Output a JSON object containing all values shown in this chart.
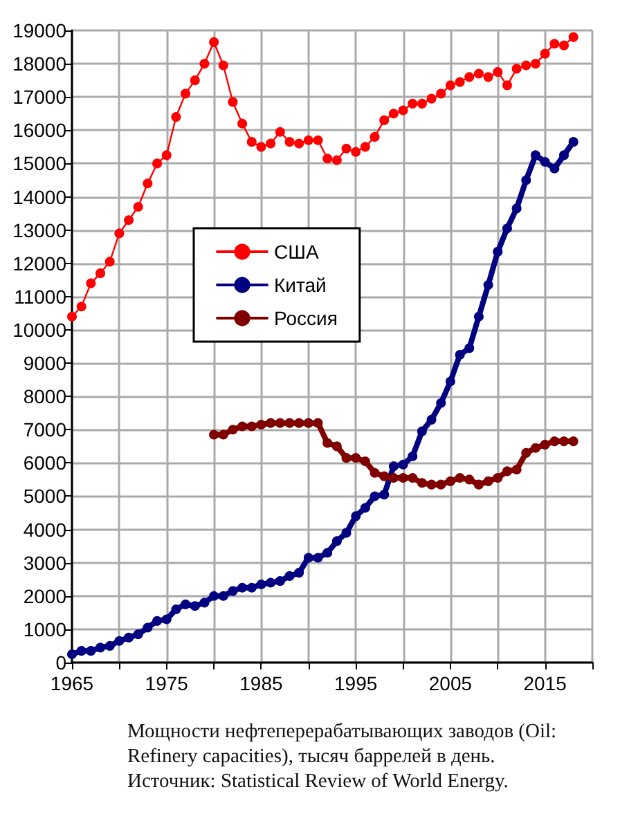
{
  "chart_data": {
    "type": "line",
    "x": [
      1965,
      1966,
      1967,
      1968,
      1969,
      1970,
      1971,
      1972,
      1973,
      1974,
      1975,
      1976,
      1977,
      1978,
      1979,
      1980,
      1981,
      1982,
      1983,
      1984,
      1985,
      1986,
      1987,
      1988,
      1989,
      1990,
      1991,
      1992,
      1993,
      1994,
      1995,
      1996,
      1997,
      1998,
      1999,
      2000,
      2001,
      2002,
      2003,
      2004,
      2005,
      2006,
      2007,
      2008,
      2009,
      2010,
      2011,
      2012,
      2013,
      2014,
      2015,
      2016,
      2017,
      2018
    ],
    "series": [
      {
        "name": "США",
        "color": "#ff0000",
        "values": [
          10400,
          10700,
          11400,
          11700,
          12050,
          12900,
          13300,
          13700,
          14400,
          15000,
          15250,
          16400,
          17100,
          17500,
          18000,
          18650,
          17950,
          16850,
          16200,
          15650,
          15500,
          15600,
          15950,
          15650,
          15600,
          15700,
          15700,
          15150,
          15100,
          15450,
          15350,
          15500,
          15800,
          16300,
          16500,
          16600,
          16800,
          16800,
          16950,
          17100,
          17350,
          17450,
          17600,
          17700,
          17600,
          17750,
          17350,
          17850,
          17950,
          18000,
          18300,
          18600,
          18550,
          18800
        ]
      },
      {
        "name": "Китай",
        "color": "#000080",
        "values": [
          250,
          350,
          350,
          450,
          500,
          650,
          750,
          850,
          1050,
          1250,
          1300,
          1600,
          1750,
          1700,
          1800,
          2000,
          2000,
          2150,
          2250,
          2250,
          2350,
          2400,
          2450,
          2600,
          2700,
          3150,
          3150,
          3300,
          3650,
          3900,
          4400,
          4650,
          5000,
          5050,
          5900,
          5950,
          6200,
          6950,
          7300,
          7800,
          8450,
          9250,
          9450,
          10400,
          11350,
          12350,
          13050,
          13650,
          14500,
          15250,
          15050,
          14850,
          15250,
          15650
        ]
      },
      {
        "name": "Россия",
        "color": "#800000",
        "x": [
          1980,
          1981,
          1982,
          1983,
          1984,
          1985,
          1986,
          1987,
          1988,
          1989,
          1990,
          1991,
          1992,
          1993,
          1994,
          1995,
          1996,
          1997,
          1998,
          1999,
          2000,
          2001,
          2002,
          2003,
          2004,
          2005,
          2006,
          2007,
          2008,
          2009,
          2010,
          2011,
          2012,
          2013,
          2014,
          2015,
          2016,
          2017,
          2018
        ],
        "values": [
          6850,
          6850,
          7000,
          7100,
          7100,
          7150,
          7200,
          7200,
          7200,
          7200,
          7200,
          7200,
          6600,
          6500,
          6150,
          6150,
          6050,
          5700,
          5600,
          5550,
          5550,
          5550,
          5400,
          5350,
          5350,
          5450,
          5550,
          5500,
          5350,
          5450,
          5550,
          5750,
          5800,
          6300,
          6450,
          6550,
          6650,
          6650,
          6650
        ]
      }
    ],
    "xlim": [
      1965,
      2020
    ],
    "xticks": [
      1965,
      {
        "value": 1970,
        "label": null
      },
      1975,
      {
        "value": 1980,
        "label": null
      },
      1985,
      {
        "value": 1990,
        "label": null
      },
      1995,
      {
        "value": 2000,
        "label": null
      },
      2005,
      {
        "value": 2010,
        "label": null
      },
      2015,
      {
        "value": 2020,
        "label": null
      }
    ],
    "ylim": [
      0,
      19000
    ],
    "yticks": [
      0,
      1000,
      2000,
      3000,
      4000,
      5000,
      6000,
      7000,
      8000,
      9000,
      10000,
      11000,
      12000,
      13000,
      14000,
      15000,
      16000,
      17000,
      18000,
      19000
    ],
    "grid": true,
    "legend": "center",
    "marker": "circle",
    "line_style": "solid",
    "annotations": [
      "Мощности нефтеперерабатывающих заводов  (Oil: Refinery capacities), тысяч баррелей в день.",
      "Источник: Statistical Review of World Energy."
    ]
  }
}
